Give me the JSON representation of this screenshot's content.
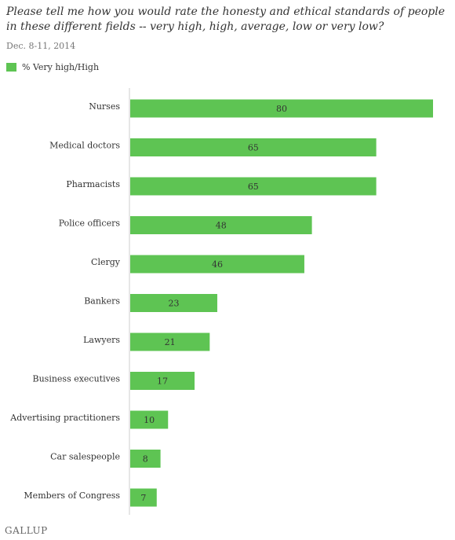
{
  "chart_data": {
    "type": "bar",
    "orientation": "horizontal",
    "title": "Please tell me how you would rate the honesty and ethical standards of people in these different fields -- very high, high, average, low or very low?",
    "subtitle": "Dec. 8-11, 2014",
    "legend": [
      "% Very high/High"
    ],
    "legend_position": "top-left",
    "grid": false,
    "xlim": [
      0,
      80
    ],
    "categories": [
      "Nurses",
      "Medical doctors",
      "Pharmacists",
      "Police officers",
      "Clergy",
      "Bankers",
      "Lawyers",
      "Business executives",
      "Advertising practitioners",
      "Car salespeople",
      "Members of Congress"
    ],
    "series": [
      {
        "name": "% Very high/High",
        "values": [
          80,
          65,
          65,
          48,
          46,
          23,
          21,
          17,
          10,
          8,
          7
        ]
      }
    ],
    "colors": {
      "bar": "#5ec453",
      "axis": "#cccccc"
    }
  },
  "footer": {
    "logo": "GALLUP"
  }
}
